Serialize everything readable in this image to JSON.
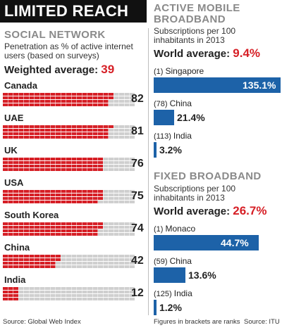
{
  "headline": "LIMITED REACH",
  "social": {
    "title": "SOCIAL NETWORK",
    "subtitle_line1": "Penetration as % of active internet",
    "subtitle_line2": "users (based on surveys)",
    "avg_label": "Weighted average:",
    "avg_value": "39",
    "source": "Source: Global Web Index"
  },
  "mobile": {
    "title_line1": "ACTIVE MOBILE",
    "title_line2": "BROADBAND",
    "subtitle_line1": "Subscriptions per 100",
    "subtitle_line2": "inhabitants in 2013",
    "avg_label": "World average:",
    "avg_value": "9.4%"
  },
  "fixed": {
    "title": "FIXED BROADBAND",
    "subtitle_line1": "Subscriptions per 100",
    "subtitle_line2": "inhabitants in 2013",
    "avg_label": "World average:",
    "avg_value": "26.7%"
  },
  "footer": {
    "note": "Figures in brackets are ranks",
    "source": "Source: ITU"
  },
  "colors": {
    "waffle_filled": "#d61f26",
    "waffle_empty": "#cfcfcf",
    "bar": "#1d62a8",
    "accent": "#d61f26"
  },
  "chart_data": [
    {
      "type": "bar",
      "title": "SOCIAL NETWORK",
      "subtitle": "Penetration as % of active internet users (based on surveys)",
      "categories": [
        "Canada",
        "UAE",
        "UK",
        "USA",
        "South Korea",
        "China",
        "India"
      ],
      "values": [
        82,
        81,
        76,
        75,
        74,
        42,
        12
      ],
      "value_labels": [
        "82",
        "81",
        "76",
        "75",
        "74",
        "42",
        "12"
      ],
      "ylim": [
        0,
        100
      ],
      "style": "waffle"
    },
    {
      "type": "bar",
      "title": "ACTIVE MOBILE BROADBAND",
      "subtitle": "Subscriptions per 100 inhabitants in 2013",
      "categories": [
        "Singapore",
        "China",
        "India"
      ],
      "ranks": [
        "(1)",
        "(78)",
        "(113)"
      ],
      "values": [
        135.1,
        21.4,
        3.2
      ],
      "value_labels": [
        "135.1%",
        "21.4%",
        "3.2%"
      ],
      "orientation": "horizontal"
    },
    {
      "type": "bar",
      "title": "FIXED BROADBAND",
      "subtitle": "Subscriptions per 100 inhabitants in 2013",
      "categories": [
        "Monaco",
        "China",
        "India"
      ],
      "ranks": [
        "(1)",
        "(59)",
        "(125)"
      ],
      "values": [
        44.7,
        13.6,
        1.2
      ],
      "value_labels": [
        "44.7%",
        "13.6%",
        "1.2%"
      ],
      "orientation": "horizontal"
    }
  ]
}
